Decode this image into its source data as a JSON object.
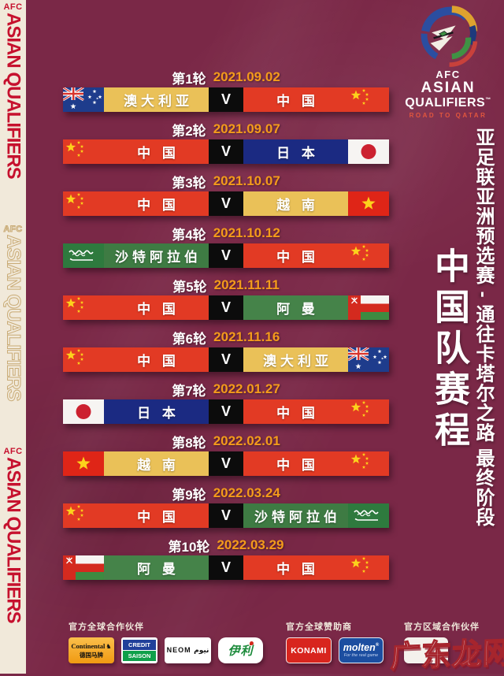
{
  "sidebar": {
    "afc": "AFC",
    "title": "ASIAN QUALIFIERS"
  },
  "logo": {
    "afc": "AFC",
    "asian": "ASIAN",
    "qualifiers": "QUALIFIERS",
    "tm": "™",
    "tagline": "ROAD TO QATAR"
  },
  "right_panel": {
    "subtitle": "亚足联亚洲预选赛 - 通往卡塔尔之路 最终阶段",
    "title": "中国队赛程"
  },
  "palette": {
    "background": "#7a2847",
    "banner_cream": "#f1e9da",
    "banner_red": "#c6112e",
    "date_orange": "#f49b1b",
    "vs_black": "#0c0c0c",
    "china_red": "#e23a24",
    "gold_yellow": "#eac158",
    "japan_navy": "#1b2a82",
    "saudi_green": "#3e7b43",
    "oman_green": "#458349"
  },
  "schedule": {
    "vs_label": "V",
    "rounds": [
      {
        "round": "第1轮",
        "date": "2021.09.02",
        "left": {
          "team": "澳大利亚",
          "flag": "australia",
          "color": "#eac158"
        },
        "right": {
          "team": "中 国",
          "flag": "china",
          "color": "#e23a24"
        }
      },
      {
        "round": "第2轮",
        "date": "2021.09.07",
        "left": {
          "team": "中 国",
          "flag": "china",
          "color": "#e23a24"
        },
        "right": {
          "team": "日 本",
          "flag": "japan",
          "color": "#1b2a82"
        }
      },
      {
        "round": "第3轮",
        "date": "2021.10.07",
        "left": {
          "team": "中 国",
          "flag": "china",
          "color": "#e23a24"
        },
        "right": {
          "team": "越 南",
          "flag": "vietnam",
          "color": "#eac158"
        }
      },
      {
        "round": "第4轮",
        "date": "2021.10.12",
        "left": {
          "team": "沙特阿拉伯",
          "flag": "saudi",
          "color": "#3e7b43"
        },
        "right": {
          "team": "中 国",
          "flag": "china",
          "color": "#e23a24"
        }
      },
      {
        "round": "第5轮",
        "date": "2021.11.11",
        "left": {
          "team": "中 国",
          "flag": "china",
          "color": "#e23a24"
        },
        "right": {
          "team": "阿 曼",
          "flag": "oman",
          "color": "#458349"
        }
      },
      {
        "round": "第6轮",
        "date": "2021.11.16",
        "left": {
          "team": "中 国",
          "flag": "china",
          "color": "#e23a24"
        },
        "right": {
          "team": "澳大利亚",
          "flag": "australia",
          "color": "#eac158"
        }
      },
      {
        "round": "第7轮",
        "date": "2022.01.27",
        "left": {
          "team": "日 本",
          "flag": "japan",
          "color": "#1b2a82"
        },
        "right": {
          "team": "中 国",
          "flag": "china",
          "color": "#e23a24"
        }
      },
      {
        "round": "第8轮",
        "date": "2022.02.01",
        "left": {
          "team": "越 南",
          "flag": "vietnam",
          "color": "#eac158"
        },
        "right": {
          "team": "中 国",
          "flag": "china",
          "color": "#e23a24"
        }
      },
      {
        "round": "第9轮",
        "date": "2022.03.24",
        "left": {
          "team": "中 国",
          "flag": "china",
          "color": "#e23a24"
        },
        "right": {
          "team": "沙特阿拉伯",
          "flag": "saudi",
          "color": "#3e7b43"
        }
      },
      {
        "round": "第10轮",
        "date": "2022.03.29",
        "left": {
          "team": "阿 曼",
          "flag": "oman",
          "color": "#458349"
        },
        "right": {
          "team": "中 国",
          "flag": "china",
          "color": "#e23a24"
        }
      }
    ]
  },
  "sponsors": {
    "groups": [
      {
        "label": "官方全球合作伙伴"
      },
      {
        "label": "官方全球赞助商"
      },
      {
        "label": "官方区域合作伙伴"
      }
    ],
    "continental": {
      "name": "Continental",
      "horse": "♞",
      "sub": "德国马牌"
    },
    "credit_saison": {
      "top": "CREDIT",
      "bottom": "SAISON"
    },
    "neom": {
      "text": "NEOM نيوم"
    },
    "yili": {
      "name": "伊利"
    },
    "konami": {
      "name": "KONAMI"
    },
    "molten": {
      "name": "molten",
      "reg": "®",
      "tagline": "For the real game"
    }
  },
  "watermark": {
    "text": "广东龙网"
  }
}
